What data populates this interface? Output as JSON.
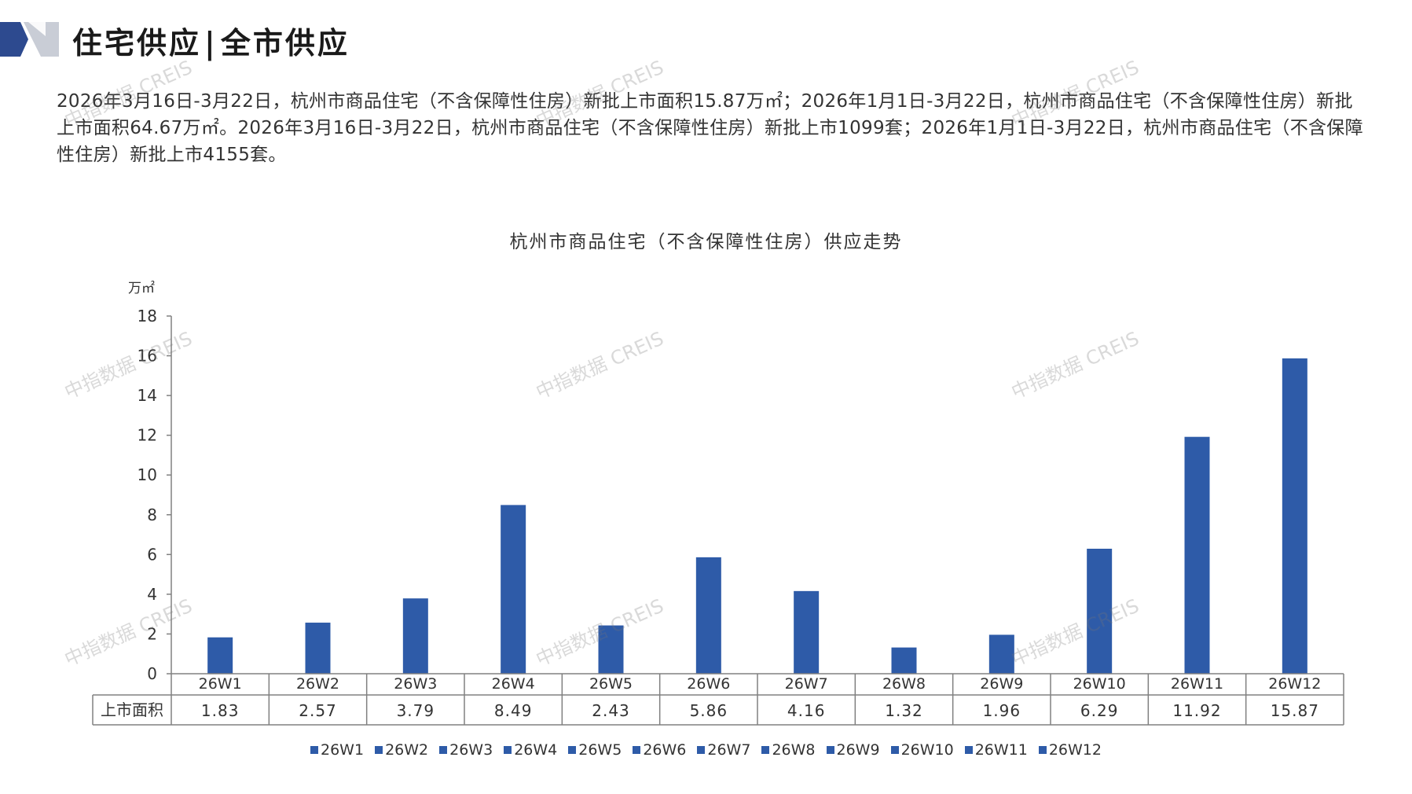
{
  "header": {
    "title_part1": "住宅供应",
    "separator": "|",
    "title_part2": "全市供应"
  },
  "summary_text": "2026年3月16日-3月22日，杭州市商品住宅（不含保障性住房）新批上市面积15.87万㎡；2026年1月1日-3月22日，杭州市商品住宅（不含保障性住房）新批上市面积64.67万㎡。2026年3月16日-3月22日，杭州市商品住宅（不含保障性住房）新批上市1099套；2026年1月1日-3月22日，杭州市商品住宅（不含保障性住房）新批上市4155套。",
  "watermark_text": "中指数据 CREIS",
  "colors": {
    "bar": "#2E5BA8",
    "header_navy": "#2D4A8F",
    "header_gray": "#C9CDD6",
    "axis": "#808080"
  },
  "chart_data": {
    "type": "bar",
    "title": "杭州市商品住宅（不含保障性住房）供应走势",
    "ylabel": "万㎡",
    "xlabel": "",
    "categories": [
      "26W1",
      "26W2",
      "26W3",
      "26W4",
      "26W5",
      "26W6",
      "26W7",
      "26W8",
      "26W9",
      "26W10",
      "26W11",
      "26W12"
    ],
    "series": [
      {
        "name": "上市面积",
        "values": [
          1.83,
          2.57,
          3.79,
          8.49,
          2.43,
          5.86,
          4.16,
          1.32,
          1.96,
          6.29,
          11.92,
          15.87
        ]
      }
    ],
    "value_labels": [
      "1.83",
      "2.57",
      "3.79",
      "8.49",
      "2.43",
      "5.86",
      "4.16",
      "1.32",
      "1.96",
      "6.29",
      "11.92",
      "15.87"
    ],
    "ylim": [
      0,
      18
    ],
    "yticks": [
      0,
      2,
      4,
      6,
      8,
      10,
      12,
      14,
      16,
      18
    ],
    "grid": false,
    "legend_position": "bottom",
    "legend": [
      "26W1",
      "26W2",
      "26W3",
      "26W4",
      "26W5",
      "26W6",
      "26W7",
      "26W8",
      "26W9",
      "26W10",
      "26W11",
      "26W12"
    ]
  }
}
